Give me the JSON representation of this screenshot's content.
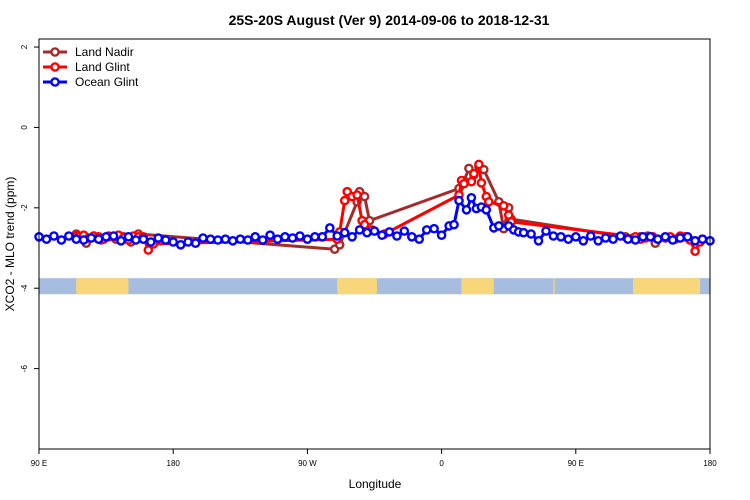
{
  "chart_data": {
    "type": "line",
    "title": "25S-20S August (Ver 9)   2014-09-06 to 2018-12-31",
    "xlabel": "Longitude",
    "ylabel": "XCO2 - MLO trend (ppm)",
    "xlim": [
      -90,
      180
    ],
    "ylim": [
      -8,
      2.2
    ],
    "x_ticks": [
      {
        "value": -90,
        "label": "90 E"
      },
      {
        "value": -36,
        "label": "180"
      },
      {
        "value": 18,
        "label": "90 W"
      },
      {
        "value": 72,
        "label": "0"
      },
      {
        "value": 126,
        "label": "90 E"
      },
      {
        "value": 180,
        "label": "180"
      }
    ],
    "y_ticks": [
      {
        "value": 2,
        "label": "2"
      },
      {
        "value": 0,
        "label": "0"
      },
      {
        "value": -2,
        "label": "-2"
      },
      {
        "value": -4,
        "label": "-4"
      },
      {
        "value": -6,
        "label": "-6"
      }
    ],
    "legend": {
      "position": "top-left"
    },
    "land_mask": {
      "y_top": -3.75,
      "y_bottom": -4.15,
      "ocean_color": "#a7bde0",
      "land_color": "#f8d77a",
      "land_spans": [
        [
          -75,
          -54
        ],
        [
          30,
          46
        ],
        [
          80,
          93
        ],
        [
          117,
          117.5
        ],
        [
          149,
          176
        ]
      ]
    },
    "series": [
      {
        "name": "Land Nadir",
        "color": "#a52a2a",
        "x": [
          -75,
          -71,
          -68,
          -65,
          -62,
          -59,
          -56,
          -53,
          -50,
          29,
          31,
          38,
          39,
          41,
          43,
          79,
          81,
          83,
          85,
          87,
          89,
          95,
          97,
          99,
          100,
          146,
          149,
          152,
          155,
          158
        ],
        "y": [
          -2.65,
          -2.88,
          -2.7,
          -2.8,
          -2.72,
          -2.78,
          -2.72,
          -2.85,
          -2.65,
          -3.03,
          -2.92,
          -1.85,
          -1.6,
          -1.72,
          -2.32,
          -1.52,
          -1.33,
          -1.02,
          -1.18,
          -0.98,
          -1.05,
          -1.85,
          -2.52,
          -2.0,
          -2.28,
          -2.72,
          -2.75,
          -2.72,
          -2.7,
          -2.88
        ]
      },
      {
        "name": "Land Glint",
        "color": "#ff0000",
        "x": [
          -75,
          -74,
          -72,
          -70,
          -68,
          -66,
          -64,
          -62,
          -60,
          -58,
          -56,
          -54,
          -52,
          -50,
          -48,
          -46,
          -44,
          30,
          31,
          33,
          34,
          36,
          38,
          40,
          41,
          44,
          49,
          79,
          80,
          81,
          84,
          85,
          87,
          88,
          90,
          91,
          97,
          99,
          100,
          150,
          152,
          154,
          157,
          159,
          162,
          164,
          166,
          168,
          170,
          172,
          174,
          176,
          177
        ],
        "y": [
          -2.7,
          -2.72,
          -2.68,
          -2.75,
          -2.7,
          -2.72,
          -2.78,
          -2.7,
          -2.72,
          -2.68,
          -2.75,
          -2.8,
          -2.7,
          -2.72,
          -2.72,
          -3.05,
          -2.9,
          -2.78,
          -2.6,
          -1.82,
          -1.6,
          -1.72,
          -1.68,
          -2.32,
          -2.42,
          -2.55,
          -2.65,
          -1.68,
          -1.32,
          -1.4,
          -1.35,
          -1.15,
          -0.92,
          -1.38,
          -1.72,
          -1.85,
          -1.95,
          -2.18,
          -2.35,
          -2.72,
          -2.78,
          -2.75,
          -2.72,
          -2.78,
          -2.75,
          -2.72,
          -2.78,
          -2.7,
          -2.72,
          -2.8,
          -3.08,
          -2.85,
          -2.78
        ]
      },
      {
        "name": "Ocean Glint",
        "color": "#0000ff",
        "x": [
          -90,
          -87,
          -84,
          -81,
          -78,
          -75,
          -72,
          -69,
          -66,
          -63,
          -60,
          -57,
          -54,
          -51,
          -48,
          -45,
          -42,
          -39,
          -36,
          -33,
          -30,
          -27,
          -24,
          -21,
          -18,
          -15,
          -12,
          -9,
          -6,
          -3,
          0,
          3,
          6,
          9,
          12,
          15,
          18,
          21,
          24,
          27,
          30,
          33,
          36,
          39,
          42,
          45,
          48,
          51,
          54,
          57,
          60,
          63,
          66,
          69,
          72,
          75,
          77,
          79,
          82,
          84,
          86,
          88,
          90,
          93,
          95,
          99,
          101,
          103,
          105,
          108,
          111,
          114,
          117,
          120,
          123,
          126,
          129,
          132,
          135,
          138,
          141,
          144,
          147,
          150,
          153,
          156,
          159,
          162,
          165,
          168,
          171,
          174,
          177,
          180
        ],
        "y": [
          -2.72,
          -2.78,
          -2.7,
          -2.8,
          -2.7,
          -2.78,
          -2.8,
          -2.75,
          -2.78,
          -2.72,
          -2.7,
          -2.82,
          -2.72,
          -2.8,
          -2.78,
          -2.85,
          -2.75,
          -2.8,
          -2.85,
          -2.92,
          -2.85,
          -2.88,
          -2.75,
          -2.78,
          -2.8,
          -2.78,
          -2.82,
          -2.78,
          -2.8,
          -2.72,
          -2.8,
          -2.68,
          -2.78,
          -2.72,
          -2.75,
          -2.7,
          -2.78,
          -2.72,
          -2.72,
          -2.5,
          -2.7,
          -2.62,
          -2.72,
          -2.55,
          -2.62,
          -2.58,
          -2.68,
          -2.6,
          -2.7,
          -2.58,
          -2.72,
          -2.78,
          -2.55,
          -2.52,
          -2.68,
          -2.45,
          -2.42,
          -1.82,
          -2.05,
          -1.75,
          -2.02,
          -1.98,
          -2.05,
          -2.5,
          -2.45,
          -2.45,
          -2.55,
          -2.6,
          -2.62,
          -2.65,
          -2.82,
          -2.58,
          -2.7,
          -2.72,
          -2.78,
          -2.72,
          -2.82,
          -2.7,
          -2.82,
          -2.75,
          -2.78,
          -2.7,
          -2.78,
          -2.8,
          -2.72,
          -2.72,
          -2.78,
          -2.72,
          -2.8,
          -2.75,
          -2.72,
          -2.82,
          -2.78,
          -2.82
        ]
      }
    ]
  }
}
